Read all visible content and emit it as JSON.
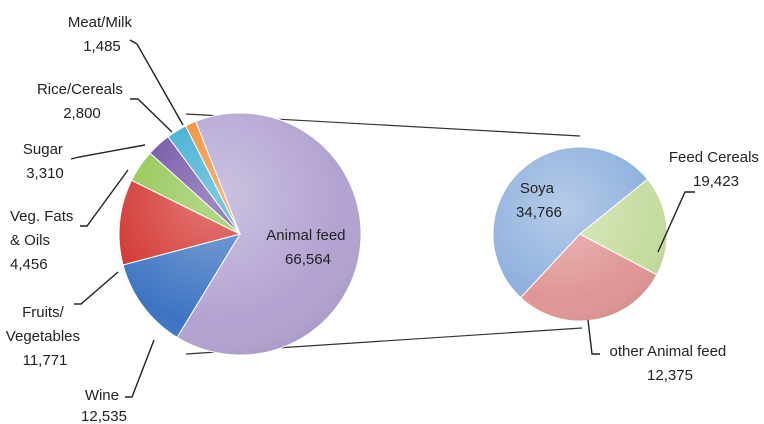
{
  "chart_data": [
    {
      "type": "pie",
      "slices": [
        {
          "label": "Animal feed",
          "value": 66564,
          "color": "#b2a2d1",
          "lines": [
            "Animal feed",
            "66,564"
          ]
        },
        {
          "label": "Wine",
          "value": 12535,
          "color": "#3d74c2",
          "lines": [
            "Wine",
            "12,535"
          ]
        },
        {
          "label": "Fruits/ Vegetables",
          "value": 11771,
          "color": "#d2332e",
          "lines": [
            "Fruits/",
            "Vegetables",
            "11,771"
          ]
        },
        {
          "label": "Veg. Fats & Oils",
          "value": 4456,
          "color": "#8dc44a",
          "lines": [
            "Veg. Fats",
            "& Oils",
            "4,456"
          ]
        },
        {
          "label": "Sugar",
          "value": 3310,
          "color": "#6a49a0",
          "lines": [
            "Sugar",
            "3,310"
          ]
        },
        {
          "label": "Rice/Cereals",
          "value": 2800,
          "color": "#33a9cf",
          "lines": [
            "Rice/Cereals",
            "2,800"
          ]
        },
        {
          "label": "Meat/Milk",
          "value": 1485,
          "color": "#f0882a",
          "lines": [
            "Meat/Milk",
            "1,485"
          ]
        }
      ]
    },
    {
      "type": "pie",
      "slices": [
        {
          "label": "Soya",
          "value": 34766,
          "color": "#8fb0dd",
          "lines": [
            "Soya",
            "34,766"
          ]
        },
        {
          "label": "Feed Cereals",
          "value": 19423,
          "color": "#e09696",
          "lines": [
            "Feed Cereals",
            "19,423"
          ]
        },
        {
          "label": "other Animal feed",
          "value": 12375,
          "color": "#c6dca0",
          "lines": [
            "other Animal feed",
            "12,375"
          ]
        }
      ]
    }
  ]
}
